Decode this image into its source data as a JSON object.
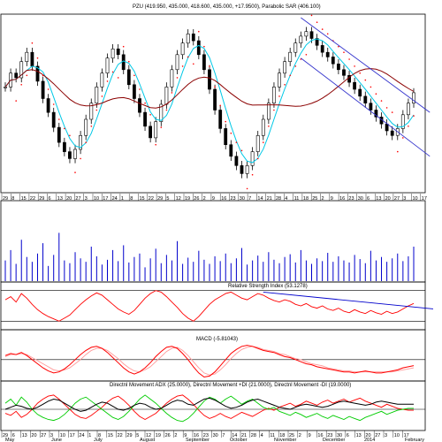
{
  "header": {
    "price_title": "PZU (419.950, 435.000, 418.600, 435.000, +17.9500), Parabolic SAR (406.100)",
    "rsi_title": "Relative Strength Index (53.1278)",
    "macd_title": "MACD (-5.81043)",
    "dmi_title": "Directnl Movement ADX (25.0000), Directnl Movement +DI (21.0000), Directnl Movement -DI (19.0000)"
  },
  "axis": {
    "top_days": [
      "29",
      "8",
      "15",
      "22",
      "29",
      "6",
      "13",
      "20",
      "27",
      "3",
      "10",
      "17",
      "24",
      "1",
      "8",
      "15",
      "22",
      "29",
      "5",
      "12",
      "19",
      "26",
      "2",
      "9",
      "16",
      "23",
      "30",
      "7",
      "14",
      "21",
      "28",
      "4",
      "11",
      "18",
      "25",
      "2",
      "9",
      "16",
      "23",
      "30",
      "6",
      "13",
      "20",
      "27",
      "3",
      "10",
      "17"
    ],
    "bottom_days": [
      "29",
      "6",
      "13",
      "20",
      "27",
      "3",
      "10",
      "17",
      "24",
      "1",
      "8",
      "15",
      "22",
      "29",
      "5",
      "12",
      "19",
      "26",
      "2",
      "9",
      "16",
      "23",
      "30",
      "7",
      "14",
      "21",
      "28",
      "4",
      "11",
      "18",
      "25",
      "2",
      "9",
      "16",
      "23",
      "30",
      "6",
      "13",
      "20",
      "27",
      "3",
      "10",
      "17"
    ],
    "months": [
      "May",
      "June",
      "July",
      "August",
      "September",
      "October",
      "November",
      "December",
      "2014",
      "February"
    ]
  },
  "colors": {
    "price_bars": "#000000",
    "ma_fast": "#00c8e6",
    "ma_slow": "#8b0000",
    "sar": "#ff0000",
    "channel": "#3333cc",
    "rsi": "#ff0000",
    "macd": "#ff0000",
    "macd_signal": "#ff9999",
    "adx": "#000000",
    "plus_di": "#00cc00",
    "minus_di": "#ff0000",
    "volume": "#0000cc",
    "trend": "#0000cc"
  },
  "chart_data": [
    {
      "type": "ohlc",
      "panel": "price",
      "title": "PZU (419.950, 435.000, 418.600, 435.000, +17.9500), Parabolic SAR (406.100)",
      "series": [
        {
          "name": "PZU",
          "values": [
            440,
            452,
            448,
            462,
            470,
            458,
            445,
            430,
            418,
            405,
            392,
            384,
            378,
            386,
            398,
            412,
            426,
            440,
            452,
            465,
            473,
            468,
            455,
            442,
            430,
            418,
            406,
            396,
            410,
            425,
            440,
            455,
            468,
            478,
            486,
            480,
            468,
            455,
            438,
            420,
            404,
            390,
            380,
            372,
            365,
            372,
            384,
            398,
            412,
            426,
            440,
            452,
            462,
            470,
            478,
            484,
            488,
            482,
            476,
            470,
            466,
            460,
            455,
            450,
            444,
            438,
            432,
            426,
            420,
            414,
            408,
            402,
            398,
            404,
            416,
            426,
            435
          ]
        }
      ],
      "last": {
        "open": 419.95,
        "high": 435.0,
        "low": 418.6,
        "close": 435.0,
        "change": 17.95
      },
      "parabolic_sar_last": 406.1
    },
    {
      "type": "bar",
      "panel": "volume",
      "series": [
        {
          "name": "Volume",
          "values": [
            30,
            45,
            25,
            60,
            35,
            28,
            40,
            55,
            22,
            38,
            70,
            30,
            26,
            42,
            33,
            28,
            50,
            36,
            24,
            31,
            45,
            29,
            52,
            27,
            35,
            40,
            20,
            33,
            47,
            26,
            38,
            30,
            58,
            25,
            34,
            28,
            44,
            31,
            25,
            36,
            29,
            40,
            26,
            33,
            48,
            24,
            30,
            37,
            28,
            42,
            31,
            26,
            35,
            39,
            27,
            45,
            30,
            25,
            33,
            29,
            41,
            28,
            36,
            30,
            27,
            38,
            32,
            26,
            44,
            30,
            35,
            28,
            33,
            40,
            29,
            36,
            50
          ]
        }
      ]
    },
    {
      "type": "line",
      "panel": "rsi",
      "title": "Relative Strength Index (53.1278)",
      "series": [
        {
          "name": "RSI",
          "values": [
            58,
            62,
            55,
            66,
            60,
            52,
            45,
            40,
            36,
            33,
            30,
            34,
            38,
            45,
            52,
            58,
            63,
            67,
            64,
            58,
            52,
            46,
            42,
            39,
            44,
            52,
            60,
            66,
            70,
            68,
            62,
            55,
            48,
            40,
            34,
            30,
            36,
            44,
            52,
            58,
            62,
            66,
            68,
            64,
            60,
            58,
            62,
            66,
            64,
            60,
            57,
            55,
            58,
            56,
            52,
            50,
            53,
            49,
            47,
            50,
            46,
            44,
            47,
            43,
            41,
            45,
            42,
            40,
            44,
            41,
            39,
            43,
            40,
            42,
            46,
            50,
            53.13
          ]
        }
      ],
      "last": 53.1278
    },
    {
      "type": "line",
      "panel": "macd",
      "title": "MACD (-5.81043)",
      "series": [
        {
          "name": "MACD",
          "values": [
            4,
            6,
            5,
            7,
            4,
            0,
            -4,
            -8,
            -11,
            -13,
            -12,
            -9,
            -5,
            0,
            5,
            9,
            12,
            13,
            11,
            7,
            2,
            -3,
            -8,
            -12,
            -14,
            -12,
            -8,
            -3,
            3,
            8,
            12,
            13,
            11,
            6,
            0,
            -7,
            -13,
            -17,
            -16,
            -12,
            -6,
            0,
            6,
            10,
            13,
            14,
            13,
            11,
            9,
            8,
            7,
            5,
            3,
            2,
            0,
            -2,
            -4,
            -5,
            -7,
            -8,
            -9,
            -10,
            -11,
            -12,
            -12,
            -13,
            -12,
            -11,
            -12,
            -13,
            -13,
            -12,
            -11,
            -10,
            -8,
            -7,
            -5.81
          ]
        },
        {
          "name": "Signal",
          "values": [
            3,
            5,
            5,
            6,
            5,
            2,
            -1,
            -4,
            -7,
            -10,
            -11,
            -10,
            -8,
            -4,
            0,
            5,
            9,
            11,
            11,
            9,
            5,
            1,
            -4,
            -8,
            -11,
            -12,
            -10,
            -7,
            -2,
            3,
            8,
            11,
            12,
            9,
            4,
            -2,
            -8,
            -13,
            -15,
            -14,
            -10,
            -5,
            1,
            6,
            10,
            12,
            13,
            12,
            10,
            9,
            8,
            6,
            5,
            3,
            1,
            0,
            -2,
            -4,
            -5,
            -6,
            -8,
            -9,
            -10,
            -11,
            -11,
            -12,
            -12,
            -12,
            -12,
            -12,
            -12,
            -12,
            -12,
            -11,
            -10,
            -9,
            -8
          ]
        }
      ],
      "last": -5.81043
    },
    {
      "type": "line",
      "panel": "dmi",
      "title": "Directnl Movement ADX (25.0000), Directnl Movement +DI (21.0000), Directnl Movement -DI (19.0000)",
      "series": [
        {
          "name": "ADX",
          "values": [
            20,
            22,
            24,
            23,
            21,
            20,
            22,
            25,
            28,
            30,
            29,
            26,
            23,
            20,
            18,
            19,
            22,
            25,
            27,
            26,
            23,
            20,
            19,
            21,
            24,
            26,
            25,
            22,
            20,
            21,
            24,
            27,
            29,
            28,
            25,
            24,
            27,
            30,
            31,
            29,
            26,
            23,
            21,
            22,
            24,
            27,
            29,
            30,
            28,
            26,
            24,
            22,
            21,
            20,
            22,
            24,
            25,
            24,
            23,
            22,
            23,
            25,
            27,
            28,
            27,
            26,
            25,
            24,
            25,
            27,
            28,
            27,
            26,
            25,
            25,
            25,
            25
          ]
        },
        {
          "name": "+DI",
          "values": [
            26,
            30,
            24,
            32,
            27,
            20,
            15,
            12,
            10,
            9,
            11,
            15,
            20,
            26,
            30,
            32,
            28,
            24,
            20,
            16,
            12,
            10,
            13,
            18,
            24,
            30,
            34,
            30,
            26,
            21,
            16,
            12,
            9,
            8,
            11,
            16,
            22,
            28,
            32,
            30,
            26,
            30,
            33,
            29,
            25,
            28,
            30,
            26,
            22,
            20,
            22,
            18,
            16,
            14,
            17,
            15,
            12,
            14,
            16,
            13,
            11,
            14,
            12,
            10,
            13,
            11,
            9,
            12,
            14,
            16,
            18,
            15,
            17,
            19,
            20,
            21,
            21
          ]
        },
        {
          "name": "-DI",
          "values": [
            16,
            14,
            18,
            12,
            15,
            20,
            26,
            30,
            33,
            34,
            30,
            25,
            20,
            15,
            12,
            11,
            14,
            18,
            22,
            27,
            31,
            33,
            29,
            24,
            18,
            13,
            10,
            13,
            16,
            21,
            26,
            30,
            33,
            34,
            30,
            25,
            19,
            14,
            11,
            13,
            16,
            13,
            11,
            14,
            17,
            15,
            13,
            16,
            19,
            21,
            19,
            22,
            24,
            26,
            23,
            25,
            28,
            26,
            24,
            27,
            29,
            26,
            28,
            30,
            27,
            29,
            31,
            28,
            26,
            24,
            22,
            25,
            23,
            21,
            20,
            19,
            19
          ]
        }
      ],
      "last": {
        "ADX": 25.0,
        "+DI": 21.0,
        "-DI": 19.0
      }
    }
  ]
}
